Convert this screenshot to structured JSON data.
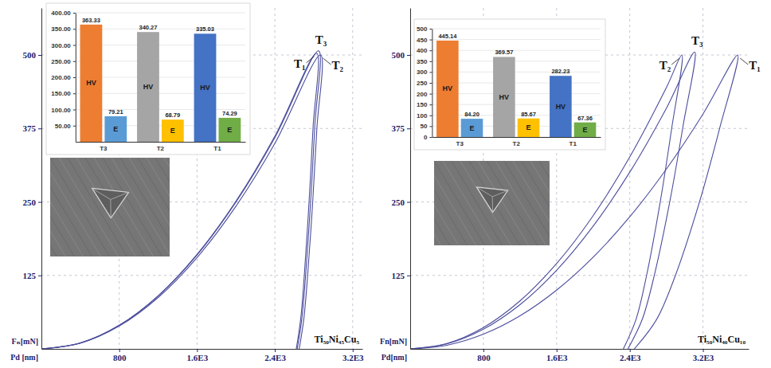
{
  "chart_data": [
    {
      "type": "line",
      "xlabel": "Pd [nm]",
      "ylabel": "Fₙ[mN]",
      "annotations": [
        "Ti₅₀Ni₄₅Cu₅"
      ],
      "xlim": [
        0,
        3300
      ],
      "ylim": [
        0,
        580
      ],
      "xticks": [
        800,
        {
          "value": 1600,
          "label": "1.6E3"
        },
        {
          "value": 2400,
          "label": "2.4E3"
        },
        {
          "value": 3200,
          "label": "3.2E3"
        }
      ],
      "yticks": [
        125,
        250,
        375,
        500
      ],
      "grid": true,
      "series": [
        {
          "name": "T₁",
          "color": "#4b4d9c",
          "x": [
            0,
            400,
            800,
            1200,
            1600,
            2000,
            2400,
            2830,
            2793,
            2752,
            2703,
            2665,
            2620
          ],
          "values": [
            0,
            10,
            40.2,
            90.4,
            160.8,
            251.2,
            361.8,
            503,
            377.3,
            251.5,
            125.8,
            50.3,
            0
          ]
        },
        {
          "name": "T₂",
          "color": "#4b4d9c",
          "x": [
            0,
            400,
            800,
            1200,
            1600,
            2000,
            2400,
            2870,
            2832,
            2789,
            2737,
            2697,
            2650
          ],
          "values": [
            0,
            9.7,
            38.9,
            87.4,
            155.4,
            242.8,
            349.6,
            500,
            375,
            250,
            125,
            50,
            0
          ]
        },
        {
          "name": "T₃",
          "color": "#4b4d9c",
          "x": [
            0,
            400,
            800,
            1200,
            1600,
            2000,
            2400,
            2850,
            2811,
            2769,
            2717,
            2677,
            2630
          ],
          "values": [
            0,
            10,
            40,
            89.9,
            159.8,
            249.7,
            359.5,
            507,
            380.3,
            253.5,
            126.8,
            50.7,
            0
          ]
        }
      ]
    },
    {
      "type": "bar",
      "categories": [
        "T3",
        "T2",
        "T1"
      ],
      "series": [
        {
          "name": "HV",
          "colors": [
            "#ed7d31",
            "#a5a5a5",
            "#4472c4"
          ],
          "values": [
            363.33,
            340.27,
            335.03
          ],
          "value_labels": [
            "363.33",
            "340.27",
            "335.03"
          ]
        },
        {
          "name": "E",
          "colors": [
            "#5b9bd5",
            "#ffc000",
            "#70ad47"
          ],
          "values": [
            79.21,
            68.79,
            74.29
          ],
          "value_labels": [
            "79.21",
            "68.79",
            "74.29"
          ]
        }
      ],
      "ylim": [
        0,
        400
      ],
      "yticks": [
        {
          "value": 50,
          "label": "50.00"
        },
        {
          "value": 100,
          "label": "100.00"
        },
        {
          "value": 150,
          "label": "150.00"
        },
        {
          "value": 200,
          "label": "200.00"
        },
        {
          "value": 250,
          "label": "250.00"
        },
        {
          "value": 300,
          "label": "300.00"
        },
        {
          "value": 350,
          "label": "350.00"
        },
        {
          "value": 400,
          "label": "400.00"
        }
      ],
      "grid": true,
      "data_labels": true
    },
    {
      "type": "line",
      "xlabel": "Pd[nm]",
      "ylabel": "Fn[mN]",
      "annotations": [
        "Ti₅₀Ni₄₀Cu₁₀"
      ],
      "xlim": [
        0,
        3700
      ],
      "ylim": [
        0,
        580
      ],
      "xticks": [
        800,
        {
          "value": 1600,
          "label": "1.6E3"
        },
        {
          "value": 2400,
          "label": "2.4E3"
        },
        {
          "value": 3200,
          "label": "3.2E3"
        }
      ],
      "yticks": [
        125,
        250,
        375,
        500
      ],
      "grid": true,
      "series": [
        {
          "name": "T₁",
          "color": "#4b4d9c",
          "x": [
            0,
            400,
            800,
            1200,
            1600,
            2000,
            2400,
            2800,
            3200,
            3580,
            3382,
            3162,
            2899,
            2693,
            2450
          ],
          "values": [
            0,
            6.2,
            25,
            56.2,
            99.9,
            156,
            224.7,
            305.9,
            399.5,
            500,
            375,
            250,
            125,
            50,
            0
          ]
        },
        {
          "name": "T₂",
          "color": "#4b4d9c",
          "x": [
            0,
            400,
            800,
            1200,
            1600,
            2000,
            2400,
            2800,
            2970,
            2858,
            2733,
            2584,
            2468,
            2330
          ],
          "values": [
            0,
            9.1,
            36.3,
            81.6,
            145.1,
            226.7,
            326.5,
            444.4,
            500,
            375,
            250,
            125,
            50,
            0
          ]
        },
        {
          "name": "T₃",
          "color": "#4b4d9c",
          "x": [
            0,
            400,
            800,
            1200,
            1600,
            2000,
            2400,
            2800,
            3110,
            2982,
            2840,
            2670,
            2537,
            2380
          ],
          "values": [
            0,
            8.4,
            33.4,
            75.2,
            133.7,
            208.9,
            300.7,
            409.4,
            505,
            378.8,
            252.5,
            126.3,
            50.5,
            0
          ]
        }
      ]
    },
    {
      "type": "bar",
      "categories": [
        "T3",
        "T2",
        "T1"
      ],
      "series": [
        {
          "name": "HV",
          "colors": [
            "#ed7d31",
            "#a5a5a5",
            "#4472c4"
          ],
          "values": [
            445.14,
            369.57,
            282.23
          ],
          "value_labels": [
            "445.14",
            "369.57",
            "282.23"
          ]
        },
        {
          "name": "E",
          "colors": [
            "#5b9bd5",
            "#ffc000",
            "#70ad47"
          ],
          "values": [
            84.2,
            85.67,
            67.36
          ],
          "value_labels": [
            "84.20",
            "85.67",
            "67.36"
          ]
        }
      ],
      "ylim": [
        0,
        500
      ],
      "yticks": [
        0,
        50,
        100,
        150,
        200,
        250,
        300,
        350,
        400,
        450,
        500
      ],
      "grid": true,
      "data_labels": true
    }
  ]
}
